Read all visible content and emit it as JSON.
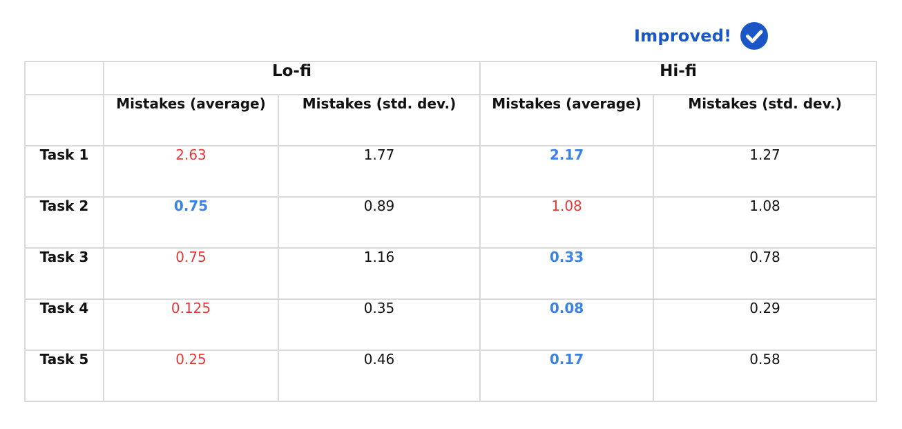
{
  "legend": {
    "label": "Improved!",
    "icon": "check-circle-icon",
    "color": "#1a56c6"
  },
  "colors": {
    "improved": "#3b82e6",
    "worse": "#e53935",
    "neutral": "#111111",
    "grid": "#d9d9d9"
  },
  "table": {
    "groups": [
      "Lo-fi",
      "Hi-fi"
    ],
    "columns": [
      "Mistakes (average)",
      "Mistakes (std. dev.)",
      "Mistakes (average)",
      "Mistakes (std. dev.)"
    ],
    "rows": [
      {
        "label": "Task 1",
        "cells": [
          {
            "value": "2.63",
            "status": "worse"
          },
          {
            "value": "1.77",
            "status": "neutral"
          },
          {
            "value": "2.17",
            "status": "better"
          },
          {
            "value": "1.27",
            "status": "neutral"
          }
        ]
      },
      {
        "label": "Task 2",
        "cells": [
          {
            "value": "0.75",
            "status": "better"
          },
          {
            "value": "0.89",
            "status": "neutral"
          },
          {
            "value": "1.08",
            "status": "worse"
          },
          {
            "value": "1.08",
            "status": "neutral"
          }
        ]
      },
      {
        "label": "Task 3",
        "cells": [
          {
            "value": "0.75",
            "status": "worse"
          },
          {
            "value": "1.16",
            "status": "neutral"
          },
          {
            "value": "0.33",
            "status": "better"
          },
          {
            "value": "0.78",
            "status": "neutral"
          }
        ]
      },
      {
        "label": "Task 4",
        "cells": [
          {
            "value": "0.125",
            "status": "worse"
          },
          {
            "value": "0.35",
            "status": "neutral"
          },
          {
            "value": "0.08",
            "status": "better"
          },
          {
            "value": "0.29",
            "status": "neutral"
          }
        ]
      },
      {
        "label": "Task 5",
        "cells": [
          {
            "value": "0.25",
            "status": "worse"
          },
          {
            "value": "0.46",
            "status": "neutral"
          },
          {
            "value": "0.17",
            "status": "better"
          },
          {
            "value": "0.58",
            "status": "neutral"
          }
        ]
      }
    ]
  }
}
